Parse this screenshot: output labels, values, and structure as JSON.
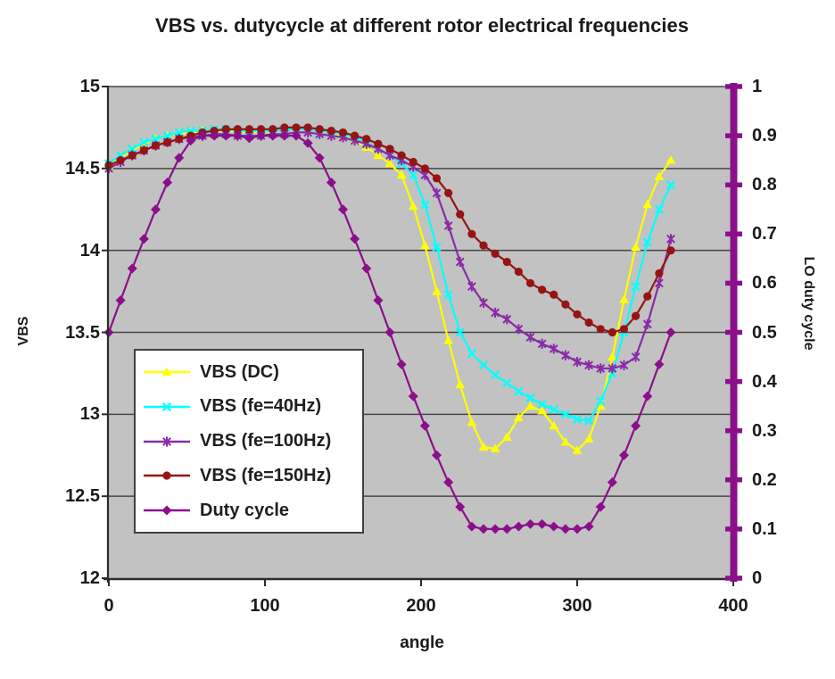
{
  "colors": {
    "plot_bg": "#c2c2c2",
    "gridline": "#474747",
    "axis": "#2b2b2b",
    "right_axis": "#8B0F8B",
    "text": "#1a1a1a",
    "legend_bg": "#ffffff",
    "legend_border": "#404040"
  },
  "chart_data": {
    "type": "line",
    "title": "VBS vs. dutycycle at different rotor electrical frequencies",
    "xlabel": "angle",
    "ylabel_left": "VBS",
    "ylabel_right": "LO duty cycle",
    "legend_position": "middle-left",
    "grid": "horizontal-only",
    "gridlines_left": [
      14.5,
      14,
      13.5,
      13,
      12.5
    ],
    "axes": {
      "x": {
        "label": "angle",
        "range": [
          0,
          400
        ],
        "ticks": [
          {
            "t": "0",
            "v": 0
          },
          {
            "t": "100",
            "v": 100
          },
          {
            "t": "200",
            "v": 200
          },
          {
            "t": "300",
            "v": 300
          },
          {
            "t": "400",
            "v": 400
          }
        ]
      },
      "left": {
        "label": "VBS",
        "range": [
          12,
          15
        ],
        "ticks": [
          {
            "t": "15",
            "v": 15
          },
          {
            "t": "14.5",
            "v": 14.5
          },
          {
            "t": "14",
            "v": 14
          },
          {
            "t": "13.5",
            "v": 13.5
          },
          {
            "t": "13",
            "v": 13
          },
          {
            "t": "12.5",
            "v": 12.5
          },
          {
            "t": "12",
            "v": 12
          }
        ]
      },
      "right": {
        "label": "LO duty cycle",
        "range": [
          0,
          1
        ],
        "ticks": [
          {
            "t": "1",
            "v": 1
          },
          {
            "t": "0.9",
            "v": 0.9
          },
          {
            "t": "0.8",
            "v": 0.8
          },
          {
            "t": "0.7",
            "v": 0.7
          },
          {
            "t": "0.6",
            "v": 0.6
          },
          {
            "t": "0.5",
            "v": 0.5
          },
          {
            "t": "0.4",
            "v": 0.4
          },
          {
            "t": "0.3",
            "v": 0.3
          },
          {
            "t": "0.2",
            "v": 0.2
          },
          {
            "t": "0.1",
            "v": 0.1
          },
          {
            "t": "0",
            "v": 0
          }
        ]
      }
    },
    "series": [
      {
        "name": "VBS (DC)",
        "axis": "left",
        "color": "#FFFF00",
        "marker": "triangle",
        "points": [
          [
            0,
            14.52
          ],
          [
            7.5,
            14.57
          ],
          [
            15,
            14.61
          ],
          [
            22.5,
            14.65
          ],
          [
            30,
            14.68
          ],
          [
            37.5,
            14.7
          ],
          [
            45,
            14.71
          ],
          [
            52.5,
            14.72
          ],
          [
            60,
            14.73
          ],
          [
            67.5,
            14.73
          ],
          [
            75,
            14.73
          ],
          [
            82.5,
            14.72
          ],
          [
            90,
            14.72
          ],
          [
            97.5,
            14.72
          ],
          [
            105,
            14.73
          ],
          [
            112.5,
            14.74
          ],
          [
            120,
            14.74
          ],
          [
            127.5,
            14.74
          ],
          [
            135,
            14.73
          ],
          [
            142.5,
            14.72
          ],
          [
            150,
            14.7
          ],
          [
            157.5,
            14.67
          ],
          [
            165,
            14.63
          ],
          [
            172.5,
            14.58
          ],
          [
            180,
            14.53
          ],
          [
            187.5,
            14.46
          ],
          [
            195,
            14.27
          ],
          [
            202.5,
            14.03
          ],
          [
            210,
            13.75
          ],
          [
            217.5,
            13.45
          ],
          [
            225,
            13.18
          ],
          [
            232.5,
            12.95
          ],
          [
            240,
            12.8
          ],
          [
            247.5,
            12.79
          ],
          [
            255,
            12.86
          ],
          [
            262.5,
            12.98
          ],
          [
            270,
            13.05
          ],
          [
            277.5,
            13.02
          ],
          [
            285,
            12.93
          ],
          [
            292.5,
            12.83
          ],
          [
            300,
            12.78
          ],
          [
            307.5,
            12.85
          ],
          [
            315,
            13.05
          ],
          [
            322.5,
            13.35
          ],
          [
            330,
            13.7
          ],
          [
            337.5,
            14.02
          ],
          [
            345,
            14.28
          ],
          [
            352.5,
            14.45
          ],
          [
            360,
            14.55
          ]
        ]
      },
      {
        "name": "VBS (fe=40Hz)",
        "axis": "left",
        "color": "#00FFFF",
        "marker": "x",
        "points": [
          [
            0,
            14.53
          ],
          [
            7.5,
            14.58
          ],
          [
            15,
            14.62
          ],
          [
            22.5,
            14.66
          ],
          [
            30,
            14.68
          ],
          [
            37.5,
            14.7
          ],
          [
            45,
            14.72
          ],
          [
            52.5,
            14.73
          ],
          [
            60,
            14.73
          ],
          [
            67.5,
            14.74
          ],
          [
            75,
            14.74
          ],
          [
            82.5,
            14.73
          ],
          [
            90,
            14.73
          ],
          [
            97.5,
            14.73
          ],
          [
            105,
            14.73
          ],
          [
            112.5,
            14.74
          ],
          [
            120,
            14.74
          ],
          [
            127.5,
            14.74
          ],
          [
            135,
            14.73
          ],
          [
            142.5,
            14.72
          ],
          [
            150,
            14.71
          ],
          [
            157.5,
            14.69
          ],
          [
            165,
            14.66
          ],
          [
            172.5,
            14.62
          ],
          [
            180,
            14.58
          ],
          [
            187.5,
            14.53
          ],
          [
            195,
            14.46
          ],
          [
            202.5,
            14.28
          ],
          [
            210,
            14.02
          ],
          [
            217.5,
            13.73
          ],
          [
            225,
            13.5
          ],
          [
            232.5,
            13.37
          ],
          [
            240,
            13.3
          ],
          [
            247.5,
            13.24
          ],
          [
            255,
            13.19
          ],
          [
            262.5,
            13.14
          ],
          [
            270,
            13.1
          ],
          [
            277.5,
            13.06
          ],
          [
            285,
            13.03
          ],
          [
            292.5,
            13.0
          ],
          [
            300,
            12.97
          ],
          [
            307.5,
            12.96
          ],
          [
            315,
            13.08
          ],
          [
            322.5,
            13.25
          ],
          [
            330,
            13.5
          ],
          [
            337.5,
            13.78
          ],
          [
            345,
            14.05
          ],
          [
            352.5,
            14.25
          ],
          [
            360,
            14.4
          ]
        ]
      },
      {
        "name": "VBS (fe=100Hz)",
        "axis": "left",
        "color": "#8A2BA8",
        "marker": "star",
        "points": [
          [
            0,
            14.5
          ],
          [
            7.5,
            14.54
          ],
          [
            15,
            14.58
          ],
          [
            22.5,
            14.61
          ],
          [
            30,
            14.64
          ],
          [
            37.5,
            14.66
          ],
          [
            45,
            14.68
          ],
          [
            52.5,
            14.69
          ],
          [
            60,
            14.7
          ],
          [
            67.5,
            14.71
          ],
          [
            75,
            14.71
          ],
          [
            82.5,
            14.7
          ],
          [
            90,
            14.7
          ],
          [
            97.5,
            14.7
          ],
          [
            105,
            14.71
          ],
          [
            112.5,
            14.71
          ],
          [
            120,
            14.72
          ],
          [
            127.5,
            14.72
          ],
          [
            135,
            14.71
          ],
          [
            142.5,
            14.7
          ],
          [
            150,
            14.69
          ],
          [
            157.5,
            14.67
          ],
          [
            165,
            14.65
          ],
          [
            172.5,
            14.62
          ],
          [
            180,
            14.58
          ],
          [
            187.5,
            14.55
          ],
          [
            195,
            14.51
          ],
          [
            202.5,
            14.46
          ],
          [
            210,
            14.35
          ],
          [
            217.5,
            14.15
          ],
          [
            225,
            13.93
          ],
          [
            232.5,
            13.78
          ],
          [
            240,
            13.68
          ],
          [
            247.5,
            13.62
          ],
          [
            255,
            13.58
          ],
          [
            262.5,
            13.52
          ],
          [
            270,
            13.47
          ],
          [
            277.5,
            13.43
          ],
          [
            285,
            13.4
          ],
          [
            292.5,
            13.36
          ],
          [
            300,
            13.32
          ],
          [
            307.5,
            13.3
          ],
          [
            315,
            13.28
          ],
          [
            322.5,
            13.28
          ],
          [
            330,
            13.3
          ],
          [
            337.5,
            13.35
          ],
          [
            345,
            13.55
          ],
          [
            352.5,
            13.8
          ],
          [
            360,
            14.07
          ]
        ]
      },
      {
        "name": "VBS (fe=150Hz)",
        "axis": "left",
        "color": "#951414",
        "marker": "circle",
        "points": [
          [
            0,
            14.52
          ],
          [
            7.5,
            14.55
          ],
          [
            15,
            14.58
          ],
          [
            22.5,
            14.61
          ],
          [
            30,
            14.64
          ],
          [
            37.5,
            14.66
          ],
          [
            45,
            14.68
          ],
          [
            52.5,
            14.7
          ],
          [
            60,
            14.72
          ],
          [
            67.5,
            14.73
          ],
          [
            75,
            14.74
          ],
          [
            82.5,
            14.74
          ],
          [
            90,
            14.74
          ],
          [
            97.5,
            14.74
          ],
          [
            105,
            14.74
          ],
          [
            112.5,
            14.75
          ],
          [
            120,
            14.75
          ],
          [
            127.5,
            14.75
          ],
          [
            135,
            14.74
          ],
          [
            142.5,
            14.73
          ],
          [
            150,
            14.72
          ],
          [
            157.5,
            14.7
          ],
          [
            165,
            14.68
          ],
          [
            172.5,
            14.65
          ],
          [
            180,
            14.62
          ],
          [
            187.5,
            14.58
          ],
          [
            195,
            14.54
          ],
          [
            202.5,
            14.5
          ],
          [
            210,
            14.44
          ],
          [
            217.5,
            14.35
          ],
          [
            225,
            14.22
          ],
          [
            232.5,
            14.1
          ],
          [
            240,
            14.03
          ],
          [
            247.5,
            13.98
          ],
          [
            255,
            13.93
          ],
          [
            262.5,
            13.87
          ],
          [
            270,
            13.8
          ],
          [
            277.5,
            13.76
          ],
          [
            285,
            13.73
          ],
          [
            292.5,
            13.67
          ],
          [
            300,
            13.61
          ],
          [
            307.5,
            13.56
          ],
          [
            315,
            13.52
          ],
          [
            322.5,
            13.5
          ],
          [
            330,
            13.52
          ],
          [
            337.5,
            13.6
          ],
          [
            345,
            13.72
          ],
          [
            352.5,
            13.86
          ],
          [
            360,
            14.0
          ]
        ]
      },
      {
        "name": "Duty cycle",
        "axis": "right",
        "color": "#8B0F8B",
        "marker": "diamond",
        "points": [
          [
            0,
            0.5
          ],
          [
            7.5,
            0.565
          ],
          [
            15,
            0.63
          ],
          [
            22.5,
            0.69
          ],
          [
            30,
            0.75
          ],
          [
            37.5,
            0.805
          ],
          [
            45,
            0.855
          ],
          [
            52.5,
            0.89
          ],
          [
            60,
            0.9
          ],
          [
            67.5,
            0.9
          ],
          [
            75,
            0.9
          ],
          [
            82.5,
            0.9
          ],
          [
            90,
            0.895
          ],
          [
            97.5,
            0.9
          ],
          [
            105,
            0.9
          ],
          [
            112.5,
            0.9
          ],
          [
            120,
            0.9
          ],
          [
            127.5,
            0.885
          ],
          [
            135,
            0.855
          ],
          [
            142.5,
            0.805
          ],
          [
            150,
            0.75
          ],
          [
            157.5,
            0.69
          ],
          [
            165,
            0.63
          ],
          [
            172.5,
            0.565
          ],
          [
            180,
            0.5
          ],
          [
            187.5,
            0.435
          ],
          [
            195,
            0.37
          ],
          [
            202.5,
            0.31
          ],
          [
            210,
            0.25
          ],
          [
            217.5,
            0.195
          ],
          [
            225,
            0.145
          ],
          [
            232.5,
            0.105
          ],
          [
            240,
            0.1
          ],
          [
            247.5,
            0.1
          ],
          [
            255,
            0.1
          ],
          [
            262.5,
            0.105
          ],
          [
            270,
            0.11
          ],
          [
            277.5,
            0.11
          ],
          [
            285,
            0.105
          ],
          [
            292.5,
            0.1
          ],
          [
            300,
            0.1
          ],
          [
            307.5,
            0.105
          ],
          [
            315,
            0.145
          ],
          [
            322.5,
            0.195
          ],
          [
            330,
            0.25
          ],
          [
            337.5,
            0.31
          ],
          [
            345,
            0.37
          ],
          [
            352.5,
            0.435
          ],
          [
            360,
            0.5
          ]
        ]
      }
    ]
  }
}
